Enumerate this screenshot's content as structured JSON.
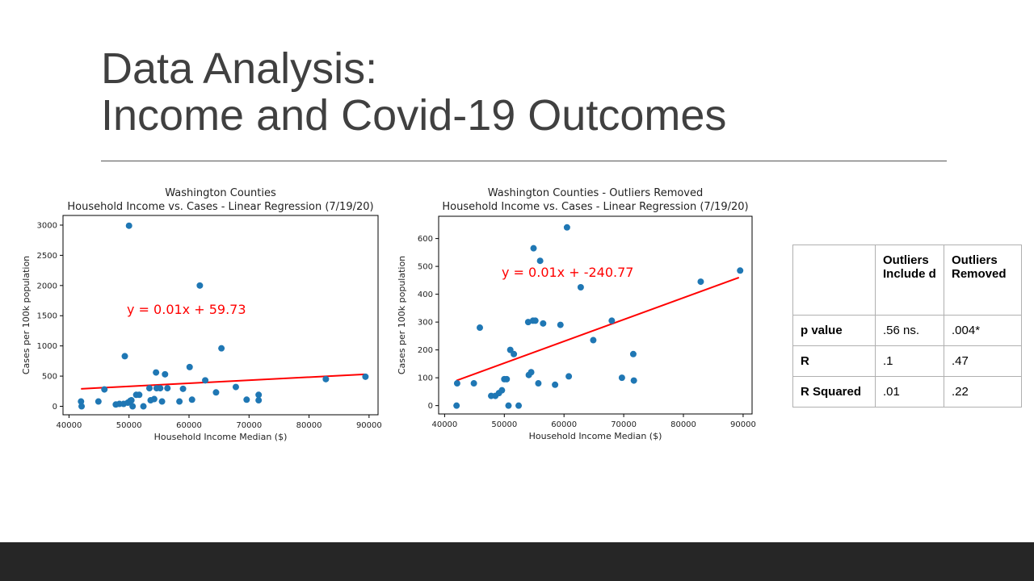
{
  "slide": {
    "title_line1": "Data Analysis:",
    "title_line2": "Income and Covid-19 Outcomes"
  },
  "colors": {
    "points": "#1f77b4",
    "regression": "#ff0000",
    "footer": "#262626",
    "title": "#404040"
  },
  "chart_data": [
    {
      "type": "scatter",
      "title": "Washington Counties",
      "subtitle": "Household Income vs. Cases - Linear Regression (7/19/20)",
      "xlabel": "Household Income Median ($)",
      "ylabel": "Cases per 100k population",
      "xlim": [
        39000,
        91500
      ],
      "ylim": [
        -140,
        3160
      ],
      "xticks": [
        40000,
        50000,
        60000,
        70000,
        80000,
        90000
      ],
      "yticks": [
        0,
        500,
        1000,
        1500,
        2000,
        2500,
        3000
      ],
      "grid": false,
      "annotation": "y = 0.01x + 59.73",
      "regression": {
        "x": [
          42000,
          89300
        ],
        "y": [
          290,
          530
        ]
      },
      "points": [
        [
          42000,
          80
        ],
        [
          42100,
          0
        ],
        [
          44900,
          80
        ],
        [
          45900,
          280
        ],
        [
          47800,
          30
        ],
        [
          48400,
          40
        ],
        [
          49100,
          40
        ],
        [
          49300,
          830
        ],
        [
          49800,
          60
        ],
        [
          50000,
          2990
        ],
        [
          50200,
          90
        ],
        [
          50400,
          100
        ],
        [
          50600,
          0
        ],
        [
          51200,
          190
        ],
        [
          51700,
          190
        ],
        [
          52400,
          0
        ],
        [
          53400,
          300
        ],
        [
          53600,
          100
        ],
        [
          54200,
          120
        ],
        [
          54500,
          560
        ],
        [
          54600,
          300
        ],
        [
          55200,
          300
        ],
        [
          55500,
          80
        ],
        [
          56000,
          530
        ],
        [
          56400,
          300
        ],
        [
          58400,
          80
        ],
        [
          59000,
          290
        ],
        [
          60100,
          650
        ],
        [
          60500,
          110
        ],
        [
          61800,
          2000
        ],
        [
          62700,
          430
        ],
        [
          64500,
          230
        ],
        [
          65400,
          960
        ],
        [
          67800,
          320
        ],
        [
          69600,
          110
        ],
        [
          71600,
          100
        ],
        [
          71600,
          190
        ],
        [
          82800,
          450
        ],
        [
          89400,
          490
        ]
      ]
    },
    {
      "type": "scatter",
      "title": "Washington Counties - Outliers Removed",
      "subtitle": "Household Income vs. Cases - Linear Regression (7/19/20)",
      "xlabel": "Household Income Median ($)",
      "ylabel": "Cases per 100k population",
      "xlim": [
        39000,
        91500
      ],
      "ylim": [
        -30,
        680
      ],
      "xticks": [
        40000,
        50000,
        60000,
        70000,
        80000,
        90000
      ],
      "yticks": [
        0,
        100,
        200,
        300,
        400,
        500,
        600
      ],
      "grid": false,
      "annotation": "y = 0.01x + -240.77",
      "regression": {
        "x": [
          42000,
          89300
        ],
        "y": [
          90,
          460
        ]
      },
      "points": [
        [
          42000,
          0
        ],
        [
          42100,
          80
        ],
        [
          44900,
          80
        ],
        [
          45900,
          280
        ],
        [
          47800,
          35
        ],
        [
          48500,
          35
        ],
        [
          49100,
          45
        ],
        [
          49600,
          55
        ],
        [
          50000,
          95
        ],
        [
          50400,
          95
        ],
        [
          50700,
          0
        ],
        [
          51000,
          200
        ],
        [
          51600,
          185
        ],
        [
          52400,
          0
        ],
        [
          54000,
          300
        ],
        [
          54100,
          110
        ],
        [
          54500,
          120
        ],
        [
          54800,
          305
        ],
        [
          54900,
          565
        ],
        [
          55200,
          305
        ],
        [
          55700,
          80
        ],
        [
          56000,
          520
        ],
        [
          56500,
          295
        ],
        [
          58500,
          75
        ],
        [
          59400,
          290
        ],
        [
          60500,
          640
        ],
        [
          60800,
          105
        ],
        [
          62800,
          425
        ],
        [
          64900,
          235
        ],
        [
          68000,
          305
        ],
        [
          69700,
          100
        ],
        [
          71600,
          185
        ],
        [
          71700,
          90
        ],
        [
          82900,
          445
        ],
        [
          89500,
          485
        ]
      ]
    }
  ],
  "stats_table": {
    "header": [
      "",
      "Outliers Include d",
      "Outliers Removed"
    ],
    "rows": [
      [
        "p value",
        ".56 ns.",
        ".004*"
      ],
      [
        "R",
        ".1",
        ".47"
      ],
      [
        "R Squared",
        ".01",
        ".22"
      ]
    ]
  }
}
